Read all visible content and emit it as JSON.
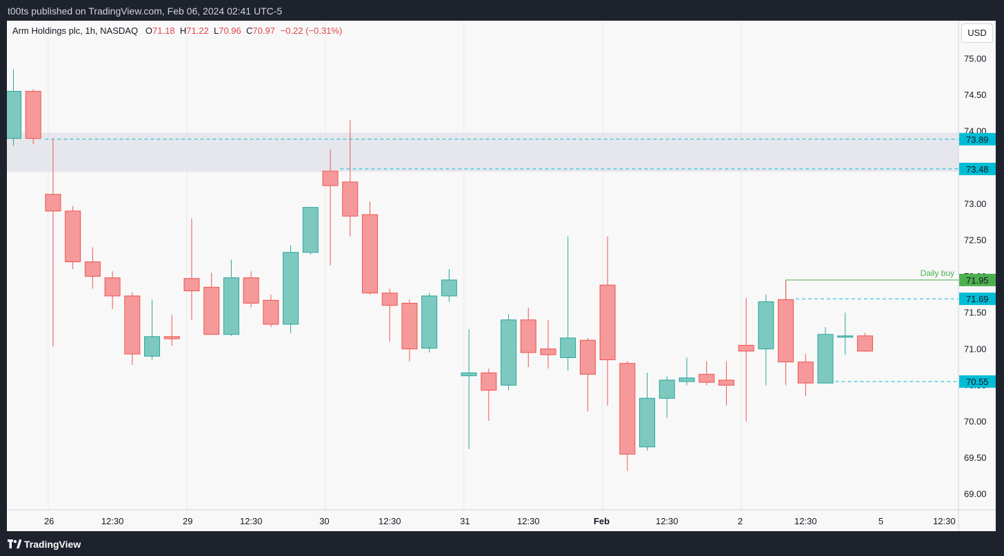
{
  "header": {
    "publish_text": "t00ts published on TradingView.com, Feb 06, 2024 02:41 UTC-5"
  },
  "legend": {
    "symbol": "Arm Holdings plc, 1h, NASDAQ",
    "open_label": "O",
    "open": "71.18",
    "high_label": "H",
    "high": "71.22",
    "low_label": "L",
    "low": "70.96",
    "close_label": "C",
    "close": "70.97",
    "change": "−0.22 (−0.31%)"
  },
  "currency": "USD",
  "footer": {
    "brand": "TradingView"
  },
  "colors": {
    "up": "#26a69a",
    "up_fill": "#7dc9bf",
    "down": "#ef5350",
    "down_fill": "#f5999a",
    "level_line": "#00bcd4",
    "daily_buy": "#4caf50",
    "zone": "#e6e7ec",
    "grid": "#e8e8e8"
  },
  "chart_data": {
    "type": "candlestick",
    "interval": "1h",
    "ylim": [
      68.7,
      75.3
    ],
    "y_ticks": [
      "69.00",
      "69.50",
      "70.00",
      "70.50",
      "71.00",
      "71.50",
      "72.00",
      "72.50",
      "73.00",
      "73.50",
      "74.00",
      "74.50",
      "75.00"
    ],
    "x_ticks": [
      {
        "label": "26",
        "bar": 1.8,
        "bold": false
      },
      {
        "label": "12:30",
        "bar": 5,
        "bold": false
      },
      {
        "label": "29",
        "bar": 8.8,
        "bold": false
      },
      {
        "label": "12:30",
        "bar": 12,
        "bold": false
      },
      {
        "label": "30",
        "bar": 15.7,
        "bold": false
      },
      {
        "label": "12:30",
        "bar": 19,
        "bold": false
      },
      {
        "label": "31",
        "bar": 22.8,
        "bold": false
      },
      {
        "label": "12:30",
        "bar": 26,
        "bold": false
      },
      {
        "label": "Feb",
        "bar": 29.7,
        "bold": true
      },
      {
        "label": "12:30",
        "bar": 33,
        "bold": false
      },
      {
        "label": "2",
        "bar": 36.7,
        "bold": false
      },
      {
        "label": "12:30",
        "bar": 40,
        "bold": false
      },
      {
        "label": "5",
        "bar": 43.8,
        "bold": false
      },
      {
        "label": "12:30",
        "bar": 47,
        "bold": false
      }
    ],
    "day_separators": [
      1.75,
      8.75,
      15.75,
      22.75,
      29.75,
      36.75
    ],
    "candles": [
      {
        "o": 73.9,
        "h": 74.85,
        "l": 73.8,
        "c": 74.55
      },
      {
        "o": 74.55,
        "h": 74.58,
        "l": 73.82,
        "c": 73.9
      },
      {
        "o": 73.13,
        "h": 73.9,
        "l": 71.03,
        "c": 72.9
      },
      {
        "o": 72.9,
        "h": 72.97,
        "l": 72.1,
        "c": 72.2
      },
      {
        "o": 72.2,
        "h": 72.4,
        "l": 71.83,
        "c": 72.0
      },
      {
        "o": 71.98,
        "h": 72.07,
        "l": 71.55,
        "c": 71.73
      },
      {
        "o": 71.73,
        "h": 71.78,
        "l": 70.78,
        "c": 70.93
      },
      {
        "o": 70.9,
        "h": 71.68,
        "l": 70.85,
        "c": 71.17
      },
      {
        "o": 71.17,
        "h": 71.47,
        "l": 71.04,
        "c": 71.14
      },
      {
        "o": 71.97,
        "h": 72.8,
        "l": 71.4,
        "c": 71.8
      },
      {
        "o": 71.85,
        "h": 72.05,
        "l": 71.2,
        "c": 71.2
      },
      {
        "o": 71.2,
        "h": 72.23,
        "l": 71.18,
        "c": 71.98
      },
      {
        "o": 71.98,
        "h": 72.07,
        "l": 71.57,
        "c": 71.63
      },
      {
        "o": 71.67,
        "h": 71.75,
        "l": 71.3,
        "c": 71.34
      },
      {
        "o": 71.34,
        "h": 72.43,
        "l": 71.22,
        "c": 72.33
      },
      {
        "o": 72.33,
        "h": 72.95,
        "l": 72.3,
        "c": 72.95
      },
      {
        "o": 73.45,
        "h": 73.75,
        "l": 72.15,
        "c": 73.25
      },
      {
        "o": 73.3,
        "h": 74.15,
        "l": 72.55,
        "c": 72.83
      },
      {
        "o": 72.85,
        "h": 73.03,
        "l": 71.75,
        "c": 71.77
      },
      {
        "o": 71.77,
        "h": 71.83,
        "l": 71.1,
        "c": 71.6
      },
      {
        "o": 71.63,
        "h": 71.68,
        "l": 70.83,
        "c": 71.0
      },
      {
        "o": 71.01,
        "h": 71.77,
        "l": 70.95,
        "c": 71.73
      },
      {
        "o": 71.73,
        "h": 72.1,
        "l": 71.65,
        "c": 71.95
      },
      {
        "o": 70.63,
        "h": 71.27,
        "l": 69.62,
        "c": 70.67
      },
      {
        "o": 70.67,
        "h": 70.73,
        "l": 70.01,
        "c": 70.43
      },
      {
        "o": 70.5,
        "h": 71.48,
        "l": 70.43,
        "c": 71.4
      },
      {
        "o": 71.4,
        "h": 71.57,
        "l": 70.75,
        "c": 70.95
      },
      {
        "o": 71.0,
        "h": 71.4,
        "l": 70.73,
        "c": 70.92
      },
      {
        "o": 70.88,
        "h": 72.55,
        "l": 70.7,
        "c": 71.15
      },
      {
        "o": 71.12,
        "h": 71.15,
        "l": 70.14,
        "c": 70.65
      },
      {
        "o": 71.88,
        "h": 72.55,
        "l": 70.22,
        "c": 70.85
      },
      {
        "o": 70.8,
        "h": 70.83,
        "l": 69.32,
        "c": 69.55
      },
      {
        "o": 69.65,
        "h": 70.67,
        "l": 69.6,
        "c": 70.32
      },
      {
        "o": 70.32,
        "h": 70.62,
        "l": 70.05,
        "c": 70.57
      },
      {
        "o": 70.55,
        "h": 70.88,
        "l": 70.5,
        "c": 70.6
      },
      {
        "o": 70.65,
        "h": 70.83,
        "l": 70.5,
        "c": 70.54
      },
      {
        "o": 70.57,
        "h": 70.83,
        "l": 70.22,
        "c": 70.5
      },
      {
        "o": 71.05,
        "h": 71.7,
        "l": 70.0,
        "c": 70.97
      },
      {
        "o": 71.0,
        "h": 71.75,
        "l": 70.5,
        "c": 71.65
      },
      {
        "o": 71.68,
        "h": 71.95,
        "l": 70.5,
        "c": 70.82
      },
      {
        "o": 70.82,
        "h": 70.93,
        "l": 70.35,
        "c": 70.53
      },
      {
        "o": 70.53,
        "h": 71.3,
        "l": 70.53,
        "c": 71.2
      },
      {
        "o": 71.18,
        "h": 71.5,
        "l": 70.92,
        "c": 71.18
      },
      {
        "o": 71.18,
        "h": 71.22,
        "l": 70.96,
        "c": 70.97
      }
    ],
    "zone": {
      "low": 73.44,
      "high": 73.98
    },
    "levels": [
      {
        "value": 73.89,
        "label": "73.89",
        "from_bar": 1.6
      },
      {
        "value": 73.48,
        "label": "73.48",
        "from_bar": 16.5
      },
      {
        "value": 71.69,
        "label": "71.69",
        "from_bar": 39.5
      },
      {
        "value": 70.55,
        "label": "70.55",
        "from_bar": 41.5
      }
    ],
    "daily_buy": {
      "value": 71.95,
      "label": "71.95",
      "text": "Daily buy",
      "from_bar": 39
    }
  }
}
